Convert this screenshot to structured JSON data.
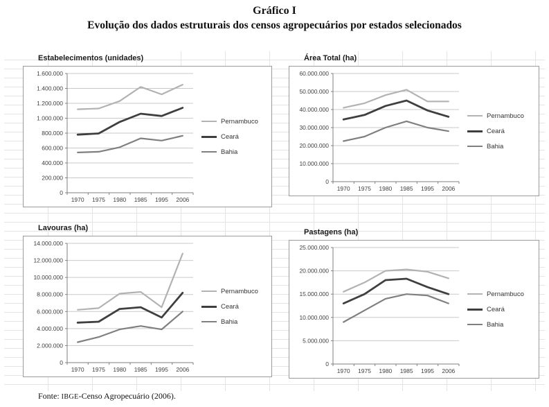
{
  "header": {
    "number": "Gráfico I",
    "title": "Evolução dos dados estruturais dos censos agropecuários por estados selecionados"
  },
  "footer": {
    "prefix": "Fonte: ",
    "org": "IBGE",
    "rest": "-Censo Agropecuário (2006)."
  },
  "palette": {
    "gridline": "#c9c9c9",
    "axis": "#7f7f7f",
    "label": "#404040"
  },
  "chart_data": [
    {
      "type": "line",
      "title": "Estabelecimentos (unidades)",
      "categories": [
        "1970",
        "1975",
        "1980",
        "1985",
        "1995",
        "2006"
      ],
      "ymin": 0,
      "ymax": 1600000,
      "ytick_labels": [
        "0",
        "200.000",
        "400.000",
        "600.000",
        "800.000",
        "1.000.000",
        "1.200.000",
        "1.400.000",
        "1.600.000"
      ],
      "grid": true,
      "legend_position": "right",
      "series": [
        {
          "name": "Pernambuco",
          "color": "#b2b2b2",
          "stroke_width": 2.2,
          "values": [
            1120000,
            1130000,
            1230000,
            1420000,
            1320000,
            1450000
          ]
        },
        {
          "name": "Ceará",
          "color": "#3f3f3f",
          "stroke_width": 2.8,
          "values": [
            780000,
            795000,
            950000,
            1060000,
            1030000,
            1140000
          ]
        },
        {
          "name": "Bahia",
          "color": "#7f7f7f",
          "stroke_width": 2.2,
          "values": [
            540000,
            550000,
            610000,
            730000,
            700000,
            765000
          ]
        }
      ]
    },
    {
      "type": "line",
      "title": "Área Total (ha)",
      "categories": [
        "1970",
        "1975",
        "1980",
        "1985",
        "1995",
        "2006"
      ],
      "ymin": 0,
      "ymax": 60000000,
      "ytick_labels": [
        "0",
        "10.000.000",
        "20.000.000",
        "30.000.000",
        "40.000.000",
        "50.000.000",
        "60.000.000"
      ],
      "grid": true,
      "legend_position": "right",
      "series": [
        {
          "name": "Pernambuco",
          "color": "#b2b2b2",
          "stroke_width": 2.2,
          "values": [
            41000000,
            43500000,
            48000000,
            51000000,
            44500000,
            44500000
          ]
        },
        {
          "name": "Ceará",
          "color": "#3f3f3f",
          "stroke_width": 2.8,
          "values": [
            34500000,
            37000000,
            42000000,
            45000000,
            39500000,
            36000000
          ]
        },
        {
          "name": "Bahia",
          "color": "#7f7f7f",
          "stroke_width": 2.2,
          "values": [
            22500000,
            25000000,
            30000000,
            33500000,
            30000000,
            28000000
          ]
        }
      ]
    },
    {
      "type": "line",
      "title": "Lavouras (ha)",
      "categories": [
        "1970",
        "1975",
        "1980",
        "1985",
        "1995",
        "2006"
      ],
      "ymin": 0,
      "ymax": 14000000,
      "ytick_labels": [
        "0",
        "2.000.000",
        "4.000.000",
        "6.000.000",
        "8.000.000",
        "10.000.000",
        "12.000.000",
        "14.000.000"
      ],
      "grid": true,
      "legend_position": "right",
      "series": [
        {
          "name": "Pernambuco",
          "color": "#b2b2b2",
          "stroke_width": 2.2,
          "values": [
            6200000,
            6400000,
            8100000,
            8300000,
            6500000,
            12800000
          ]
        },
        {
          "name": "Ceará",
          "color": "#3f3f3f",
          "stroke_width": 2.8,
          "values": [
            4700000,
            4800000,
            6300000,
            6500000,
            5300000,
            8200000
          ]
        },
        {
          "name": "Bahia",
          "color": "#7f7f7f",
          "stroke_width": 2.2,
          "values": [
            2400000,
            3000000,
            3900000,
            4300000,
            3900000,
            6000000
          ]
        }
      ]
    },
    {
      "type": "line",
      "title": "Pastagens (ha)",
      "categories": [
        "1970",
        "1975",
        "1980",
        "1985",
        "1995",
        "2006"
      ],
      "ymin": 0,
      "ymax": 25000000,
      "ytick_labels": [
        "0",
        "5.000.000",
        "10.000.000",
        "15.000.000",
        "20.000.000",
        "25.000.000"
      ],
      "grid": true,
      "legend_position": "right",
      "series": [
        {
          "name": "Pernambuco",
          "color": "#b2b2b2",
          "stroke_width": 2.2,
          "values": [
            15500000,
            17500000,
            20000000,
            20300000,
            19800000,
            18400000
          ]
        },
        {
          "name": "Ceará",
          "color": "#3f3f3f",
          "stroke_width": 2.8,
          "values": [
            13000000,
            15000000,
            18000000,
            18300000,
            16500000,
            15000000
          ]
        },
        {
          "name": "Bahia",
          "color": "#7f7f7f",
          "stroke_width": 2.2,
          "values": [
            9000000,
            11500000,
            14000000,
            15000000,
            14700000,
            13000000
          ]
        }
      ]
    }
  ]
}
